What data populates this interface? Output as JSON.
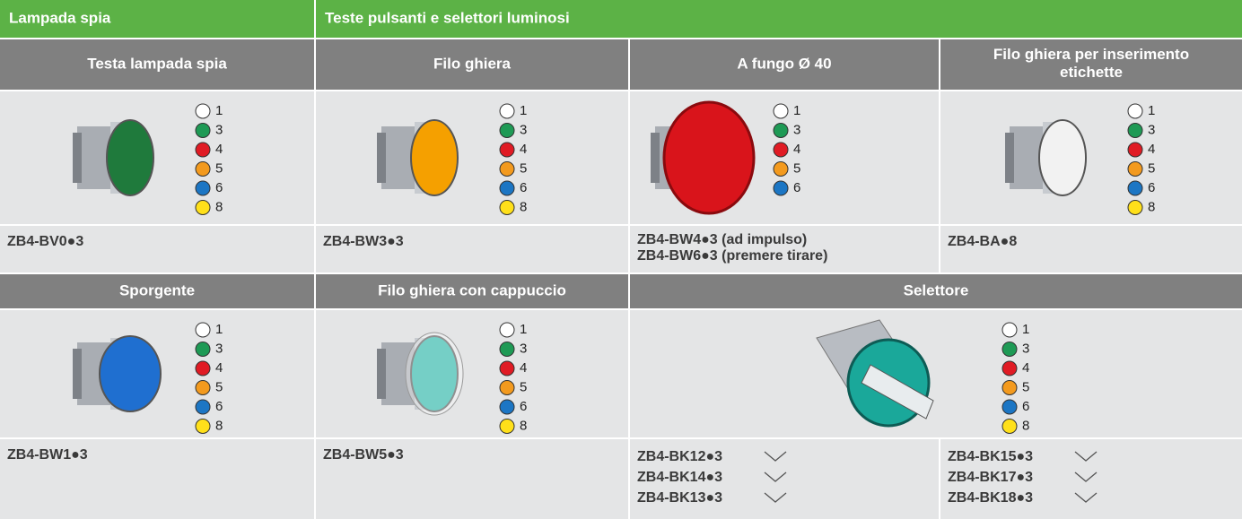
{
  "header": {
    "group_1": "Lampada spia",
    "group_2": "Teste pulsanti e selettori luminosi"
  },
  "products": [
    {
      "title": "Testa lampada spia",
      "legend": [
        {
          "code": "1",
          "color": "#ffffff"
        },
        {
          "code": "3",
          "color": "#1e9a55"
        },
        {
          "code": "4",
          "color": "#e01b24"
        },
        {
          "code": "5",
          "color": "#f39a1e"
        },
        {
          "code": "6",
          "color": "#1c76c4"
        },
        {
          "code": "8",
          "color": "#ffe01a"
        }
      ],
      "codes": [
        "ZB4-BV0●3"
      ]
    },
    {
      "title": "Filo ghiera",
      "legend": [
        {
          "code": "1",
          "color": "#ffffff"
        },
        {
          "code": "3",
          "color": "#1e9a55"
        },
        {
          "code": "4",
          "color": "#e01b24"
        },
        {
          "code": "5",
          "color": "#f39a1e"
        },
        {
          "code": "6",
          "color": "#1c76c4"
        },
        {
          "code": "8",
          "color": "#ffe01a"
        }
      ],
      "codes": [
        "ZB4-BW3●3"
      ]
    },
    {
      "title": "A fungo Ø 40",
      "legend": [
        {
          "code": "1",
          "color": "#ffffff"
        },
        {
          "code": "3",
          "color": "#1e9a55"
        },
        {
          "code": "4",
          "color": "#e01b24"
        },
        {
          "code": "5",
          "color": "#f39a1e"
        },
        {
          "code": "6",
          "color": "#1c76c4"
        }
      ],
      "codes": [
        "ZB4-BW4●3 (ad impulso)",
        "ZB4-BW6●3 (premere tirare)"
      ]
    },
    {
      "title": "Filo ghiera per inserimento etichette",
      "legend": [
        {
          "code": "1",
          "color": "#ffffff"
        },
        {
          "code": "3",
          "color": "#1e9a55"
        },
        {
          "code": "4",
          "color": "#e01b24"
        },
        {
          "code": "5",
          "color": "#f39a1e"
        },
        {
          "code": "6",
          "color": "#1c76c4"
        },
        {
          "code": "8",
          "color": "#ffe01a"
        }
      ],
      "codes": [
        "ZB4-BA●8"
      ]
    },
    {
      "title": "Sporgente",
      "legend": [
        {
          "code": "1",
          "color": "#ffffff"
        },
        {
          "code": "3",
          "color": "#1e9a55"
        },
        {
          "code": "4",
          "color": "#e01b24"
        },
        {
          "code": "5",
          "color": "#f39a1e"
        },
        {
          "code": "6",
          "color": "#1c76c4"
        },
        {
          "code": "8",
          "color": "#ffe01a"
        }
      ],
      "codes": [
        "ZB4-BW1●3"
      ]
    },
    {
      "title": "Filo ghiera con cappuccio",
      "legend": [
        {
          "code": "1",
          "color": "#ffffff"
        },
        {
          "code": "3",
          "color": "#1e9a55"
        },
        {
          "code": "4",
          "color": "#e01b24"
        },
        {
          "code": "5",
          "color": "#f39a1e"
        },
        {
          "code": "6",
          "color": "#1c76c4"
        },
        {
          "code": "8",
          "color": "#ffe01a"
        }
      ],
      "codes": [
        "ZB4-BW5●3"
      ]
    },
    {
      "title": "Selettore",
      "legend": [
        {
          "code": "1",
          "color": "#ffffff"
        },
        {
          "code": "3",
          "color": "#1e9a55"
        },
        {
          "code": "4",
          "color": "#e01b24"
        },
        {
          "code": "5",
          "color": "#f39a1e"
        },
        {
          "code": "6",
          "color": "#1c76c4"
        },
        {
          "code": "8",
          "color": "#ffe01a"
        }
      ],
      "codes": [
        "ZB4-BK12●3",
        "ZB4-BK14●3",
        "ZB4-BK13●3",
        "ZB4-BK15●3",
        "ZB4-BK17●3",
        "ZB4-BK18●3"
      ]
    }
  ]
}
